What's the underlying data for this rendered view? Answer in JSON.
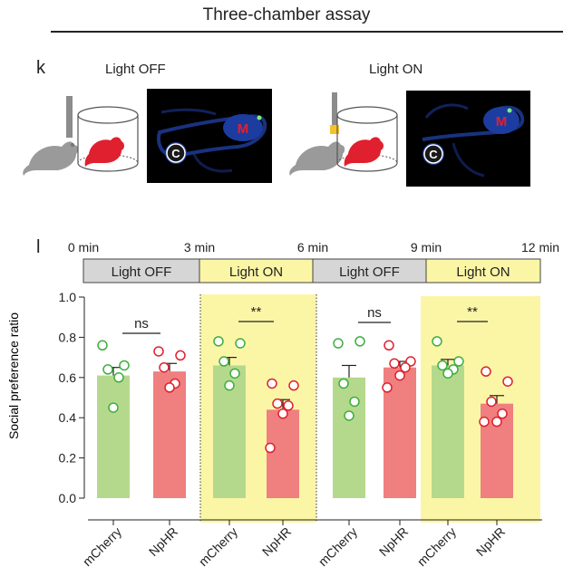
{
  "figure_title": "Three-chamber assay",
  "panel_k": {
    "letter": "k",
    "conditions": [
      {
        "label": "Light OFF",
        "heatmap_labels": [
          "C",
          "M"
        ]
      },
      {
        "label": "Light ON",
        "heatmap_labels": [
          "C",
          "M"
        ]
      }
    ]
  },
  "panel_l": {
    "letter": "l",
    "timeline": {
      "ticks": [
        "0 min",
        "3 min",
        "6 min",
        "9 min",
        "12 min"
      ],
      "blocks": [
        "Light OFF",
        "Light ON",
        "Light OFF",
        "Light ON"
      ]
    }
  },
  "colors": {
    "mcherry_bar": "#b5d98c",
    "nphr_bar": "#f07f7f",
    "mcherry_point": "#3dae3d",
    "nphr_point": "#e0202e",
    "light_on_bg": "#fbf6a6",
    "light_off_bg": "#d6d6d6"
  },
  "chart_data": {
    "type": "bar",
    "ylabel": "Social preference ratio",
    "ylim": [
      0,
      1.0
    ],
    "yticks": [
      "0.0",
      "0.2",
      "0.4",
      "0.6",
      "0.8",
      "1.0"
    ],
    "categories": [
      "mCherry",
      "NpHR",
      "mCherry",
      "NpHR",
      "mCherry",
      "NpHR",
      "mCherry",
      "NpHR"
    ],
    "values": [
      0.61,
      0.63,
      0.66,
      0.44,
      0.6,
      0.65,
      0.66,
      0.47
    ],
    "sem": [
      0.04,
      0.04,
      0.04,
      0.05,
      0.06,
      0.03,
      0.03,
      0.04
    ],
    "points": [
      [
        0.76,
        0.66,
        0.64,
        0.6,
        0.45
      ],
      [
        0.73,
        0.71,
        0.65,
        0.57,
        0.55
      ],
      [
        0.78,
        0.77,
        0.68,
        0.62,
        0.56
      ],
      [
        0.57,
        0.56,
        0.47,
        0.46,
        0.42,
        0.25
      ],
      [
        0.77,
        0.78,
        0.57,
        0.48,
        0.41
      ],
      [
        0.76,
        0.68,
        0.67,
        0.65,
        0.61,
        0.55
      ],
      [
        0.78,
        0.68,
        0.66,
        0.64,
        0.62
      ],
      [
        0.63,
        0.58,
        0.48,
        0.42,
        0.38,
        0.38
      ]
    ],
    "significance": [
      "ns",
      "**",
      "ns",
      "**"
    ]
  }
}
